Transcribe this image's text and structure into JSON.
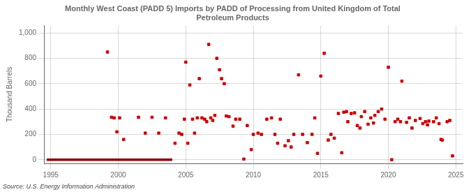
{
  "chart_data": {
    "type": "scatter",
    "title": "Monthly West Coast (PADD 5) Imports by PADD of Processing from United Kingdom of Total\nPetroleum Products",
    "ylabel": "Thousand Barrels",
    "annotations": [
      "Source: U.S. Energy Information Administration"
    ],
    "xlim": [
      1994.5,
      2025.5
    ],
    "ylim": [
      -30,
      1060
    ],
    "xticks": [
      1995,
      2000,
      2005,
      2010,
      2015,
      2020,
      2025
    ],
    "yticks": [
      0,
      200,
      400,
      600,
      800,
      {
        "value": 1000,
        "label": "1,000"
      }
    ],
    "grid": true,
    "series": [
      {
        "type": "line",
        "color": "#8b0000",
        "line_style": "solid",
        "x": [
          1994.7,
          2004.0
        ],
        "values": [
          0,
          0
        ]
      },
      {
        "type": "scatter",
        "color": "#cc0000",
        "marker": "square",
        "x": [
          1999.2,
          1999.5,
          1999.7,
          1999.9,
          2000.1,
          2000.4,
          2001.5,
          2002.0,
          2002.5,
          2003.0,
          2003.5,
          2004.2,
          2004.5,
          2004.7,
          2004.9,
          2005.0,
          2005.15,
          2005.3,
          2005.5,
          2005.65,
          2005.85,
          2006.0,
          2006.2,
          2006.4,
          2006.55,
          2006.7,
          2006.85,
          2007.0,
          2007.15,
          2007.3,
          2007.5,
          2007.65,
          2007.85,
          2008.0,
          2008.2,
          2008.5,
          2008.7,
          2009.0,
          2009.3,
          2009.55,
          2009.85,
          2010.0,
          2010.35,
          2010.6,
          2011.0,
          2011.35,
          2011.6,
          2011.8,
          2012.0,
          2012.35,
          2012.6,
          2012.8,
          2013.0,
          2013.35,
          2013.65,
          2014.0,
          2014.35,
          2014.55,
          2014.75,
          2015.0,
          2015.25,
          2015.55,
          2015.75,
          2016.0,
          2016.3,
          2016.55,
          2016.7,
          2016.9,
          2017.0,
          2017.25,
          2017.5,
          2017.7,
          2017.9,
          2018.0,
          2018.25,
          2018.5,
          2018.7,
          2018.9,
          2019.0,
          2019.25,
          2019.5,
          2019.75,
          2020.0,
          2020.25,
          2020.5,
          2020.7,
          2020.9,
          2021.0,
          2021.35,
          2021.55,
          2021.75,
          2022.0,
          2022.35,
          2022.55,
          2022.75,
          2022.9,
          2023.0,
          2023.35,
          2023.55,
          2023.75,
          2023.9,
          2024.0,
          2024.35,
          2024.55,
          2024.75
        ],
        "values": [
          850,
          335,
          330,
          220,
          330,
          160,
          335,
          210,
          335,
          210,
          330,
          130,
          210,
          200,
          320,
          770,
          130,
          590,
          320,
          210,
          330,
          640,
          330,
          320,
          300,
          910,
          330,
          310,
          350,
          800,
          710,
          640,
          600,
          345,
          340,
          265,
          320,
          320,
          5,
          270,
          80,
          200,
          210,
          200,
          320,
          330,
          200,
          130,
          320,
          110,
          150,
          100,
          200,
          670,
          200,
          135,
          200,
          330,
          50,
          660,
          840,
          155,
          200,
          170,
          365,
          55,
          375,
          380,
          300,
          365,
          370,
          270,
          250,
          340,
          380,
          280,
          330,
          290,
          350,
          380,
          400,
          320,
          730,
          0,
          300,
          320,
          300,
          620,
          295,
          330,
          250,
          310,
          325,
          285,
          300,
          275,
          305,
          300,
          330,
          285,
          160,
          155,
          300,
          310,
          30
        ]
      }
    ],
    "legend": false
  }
}
